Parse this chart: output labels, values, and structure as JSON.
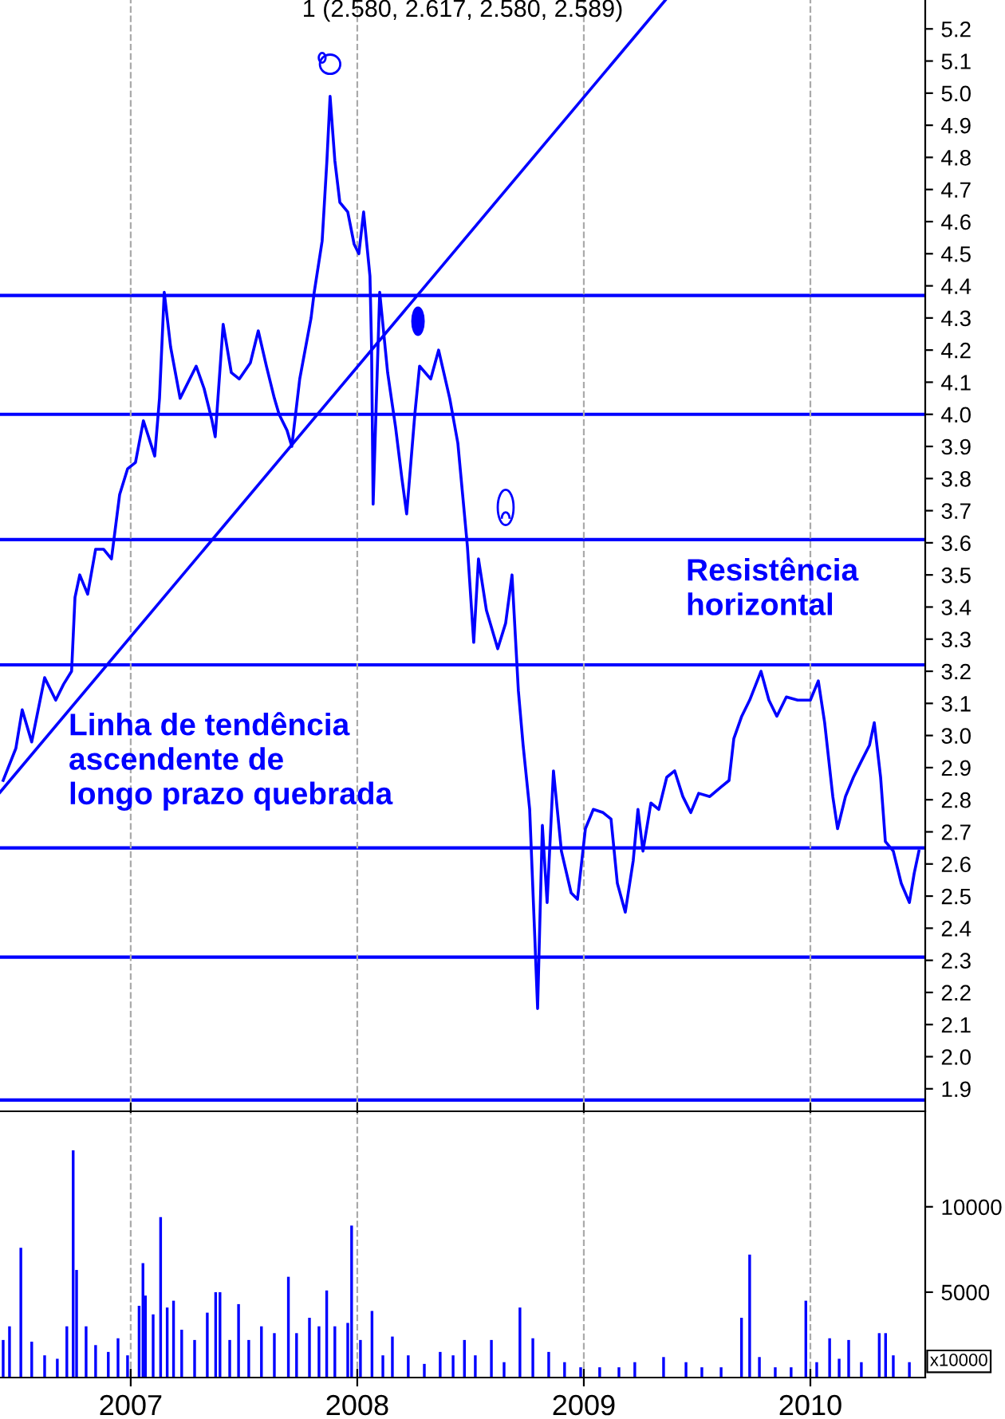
{
  "chart_data": [
    {
      "type": "line",
      "title": "1 (2.580, 2.617, 2.580, 2.589)",
      "xlim": [
        2006.423,
        2010.507
      ],
      "xticks": [
        {
          "value": 2007,
          "label": null
        },
        {
          "value": 2008,
          "label": null
        },
        {
          "value": 2009,
          "label": null
        },
        {
          "value": 2010,
          "label": null
        }
      ],
      "ylim": [
        1.83,
        5.29
      ],
      "yticks": [
        1.9,
        {
          "value": 2,
          "label": "2.0"
        },
        2.1,
        2.2,
        2.3,
        2.4,
        2.5,
        2.6,
        2.7,
        2.8,
        2.9,
        {
          "value": 3,
          "label": "3.0"
        },
        3.1,
        3.2,
        3.3,
        3.4,
        3.5,
        3.6,
        3.7,
        3.8,
        3.9,
        {
          "value": 4,
          "label": "4.0"
        },
        4.1,
        4.2,
        4.3,
        4.4,
        4.5,
        4.6,
        4.7,
        4.8,
        4.9,
        {
          "value": 5,
          "label": "5.0"
        },
        5.1,
        5.2
      ],
      "tick_labels": "y",
      "grid": "x",
      "legend": false,
      "series": [
        {
          "color": "#0000ff",
          "x": [
            2006.437,
            2006.493,
            2006.521,
            2006.563,
            2006.62,
            2006.669,
            2006.704,
            2006.739,
            2006.754,
            2006.775,
            2006.81,
            2006.845,
            2006.88,
            2006.915,
            2006.951,
            2006.986,
            2007.021,
            2007.056,
            2007.106,
            2007.127,
            2007.148,
            2007.176,
            2007.218,
            2007.289,
            2007.324,
            2007.359,
            2007.373,
            2007.408,
            2007.444,
            2007.479,
            2007.528,
            2007.563,
            2007.599,
            2007.634,
            2007.655,
            2007.69,
            2007.711,
            2007.746,
            2007.796,
            2007.81,
            2007.845,
            2007.866,
            2007.88,
            2007.901,
            2007.923,
            2007.958,
            2007.986,
            2008.007,
            2008.028,
            2008.056,
            2008.063,
            2008.07,
            2008.099,
            2008.134,
            2008.169,
            2008.197,
            2008.218,
            2008.254,
            2008.275,
            2008.324,
            2008.359,
            2008.408,
            2008.444,
            2008.465,
            2008.486,
            2008.514,
            2008.535,
            2008.57,
            2008.62,
            2008.655,
            2008.683,
            2008.711,
            2008.732,
            2008.761,
            2008.782,
            2008.796,
            2008.817,
            2008.838,
            2008.866,
            2008.901,
            2008.944,
            2008.972,
            2009.007,
            2009.042,
            2009.085,
            2009.12,
            2009.148,
            2009.183,
            2009.218,
            2009.239,
            2009.261,
            2009.296,
            2009.331,
            2009.366,
            2009.401,
            2009.437,
            2009.472,
            2009.507,
            2009.556,
            2009.606,
            2009.641,
            2009.662,
            2009.697,
            2009.732,
            2009.782,
            2009.817,
            2009.852,
            2009.894,
            2009.944,
            2010.0,
            2010.035,
            2010.063,
            2010.099,
            2010.12,
            2010.155,
            2010.19,
            2010.225,
            2010.261,
            2010.282,
            2010.31,
            2010.331,
            2010.366,
            2010.401,
            2010.437,
            2010.458,
            2010.479
          ],
          "values": [
            2.86,
            2.96,
            3.08,
            2.98,
            3.18,
            3.11,
            3.16,
            3.2,
            3.43,
            3.5,
            3.44,
            3.58,
            3.58,
            3.55,
            3.75,
            3.83,
            3.85,
            3.98,
            3.87,
            4.05,
            4.38,
            4.21,
            4.05,
            4.15,
            4.08,
            3.98,
            3.93,
            4.28,
            4.13,
            4.11,
            4.16,
            4.26,
            4.15,
            4.05,
            4.0,
            3.95,
            3.9,
            4.11,
            4.3,
            4.38,
            4.54,
            4.79,
            4.99,
            4.79,
            4.66,
            4.63,
            4.53,
            4.5,
            4.63,
            4.43,
            4.21,
            3.72,
            4.38,
            4.13,
            3.96,
            3.8,
            3.69,
            4.0,
            4.15,
            4.11,
            4.2,
            4.05,
            3.91,
            3.75,
            3.59,
            3.29,
            3.55,
            3.39,
            3.27,
            3.35,
            3.5,
            3.14,
            2.97,
            2.77,
            2.4,
            2.15,
            2.72,
            2.48,
            2.89,
            2.64,
            2.51,
            2.49,
            2.71,
            2.77,
            2.76,
            2.74,
            2.54,
            2.45,
            2.61,
            2.77,
            2.64,
            2.79,
            2.77,
            2.87,
            2.89,
            2.81,
            2.76,
            2.82,
            2.81,
            2.84,
            2.86,
            2.99,
            3.06,
            3.11,
            3.2,
            3.11,
            3.06,
            3.12,
            3.11,
            3.11,
            3.17,
            3.04,
            2.81,
            2.71,
            2.81,
            2.87,
            2.92,
            2.97,
            3.04,
            2.87,
            2.67,
            2.64,
            2.54,
            2.48,
            2.57,
            2.64
          ]
        },
        {
          "type": "line",
          "color": "#0000ff",
          "x": [
            2006.423,
            2009.359
          ],
          "values": [
            2.823,
            5.289
          ]
        }
      ],
      "ref_lines": [
        {
          "axis": "y",
          "value": 4.37,
          "color": "#0000ff"
        },
        {
          "axis": "y",
          "value": 4.0,
          "color": "#0000ff"
        },
        {
          "axis": "y",
          "value": 3.61,
          "color": "#0000ff"
        },
        {
          "axis": "y",
          "value": 3.22,
          "color": "#0000ff"
        },
        {
          "axis": "y",
          "value": 2.65,
          "color": "#0000ff"
        },
        {
          "axis": "y",
          "value": 2.31,
          "color": "#0000ff"
        },
        {
          "axis": "y",
          "value": 1.865,
          "color": "#0000ff"
        }
      ],
      "annotations": [
        "Linha de tendência\nascendente de\nlongo prazo quebrada",
        "Resistência\nhorizontal"
      ]
    },
    {
      "type": "bar",
      "color": "#0000ff",
      "xlim": [
        2006.423,
        2010.507
      ],
      "xticks": [
        {
          "value": 2007,
          "label": "2007"
        },
        {
          "value": 2008,
          "label": "2008"
        },
        {
          "value": 2009,
          "label": "2009"
        },
        {
          "value": 2010,
          "label": "2010"
        }
      ],
      "ylim": [
        0,
        15500
      ],
      "yticks": [
        5000,
        10000
      ],
      "grid": "x",
      "x": [
        2006.437,
        2006.465,
        2006.515,
        2006.563,
        2006.62,
        2006.676,
        2006.718,
        2006.746,
        2006.761,
        2006.803,
        2006.845,
        2006.901,
        2006.944,
        2006.986,
        2007.037,
        2007.054,
        2007.065,
        2007.099,
        2007.132,
        2007.161,
        2007.189,
        2007.225,
        2007.282,
        2007.338,
        2007.375,
        2007.394,
        2007.437,
        2007.476,
        2007.521,
        2007.577,
        2007.634,
        2007.696,
        2007.732,
        2007.789,
        2007.831,
        2007.865,
        2007.901,
        2007.958,
        2007.975,
        2008.014,
        2008.065,
        2008.113,
        2008.155,
        2008.225,
        2008.296,
        2008.366,
        2008.423,
        2008.473,
        2008.521,
        2008.592,
        2008.648,
        2008.718,
        2008.775,
        2008.845,
        2008.915,
        2008.986,
        2009.07,
        2009.155,
        2009.225,
        2009.352,
        2009.451,
        2009.521,
        2009.606,
        2009.696,
        2009.732,
        2009.775,
        2009.845,
        2009.915,
        2009.98,
        2010.028,
        2010.085,
        2010.127,
        2010.169,
        2010.225,
        2010.304,
        2010.332,
        2010.366,
        2010.437
      ],
      "values": [
        2200,
        3000,
        7600,
        2100,
        1300,
        1100,
        3000,
        13300,
        6300,
        3000,
        1900,
        1500,
        2300,
        1300,
        4200,
        6700,
        4800,
        3700,
        9400,
        4100,
        4500,
        2800,
        2200,
        3800,
        5000,
        5000,
        2200,
        4300,
        2200,
        3000,
        2600,
        5900,
        2600,
        3500,
        3000,
        5100,
        3000,
        3200,
        8900,
        2200,
        3900,
        1300,
        2400,
        1300,
        800,
        1500,
        1300,
        2200,
        1300,
        2200,
        900,
        4100,
        2300,
        1500,
        900,
        600,
        600,
        600,
        900,
        1200,
        900,
        600,
        600,
        3500,
        7200,
        1200,
        600,
        600,
        4500,
        900,
        2300,
        1100,
        2200,
        900,
        2600,
        2600,
        1300,
        900
      ],
      "annotations": [
        "x10000"
      ]
    }
  ]
}
